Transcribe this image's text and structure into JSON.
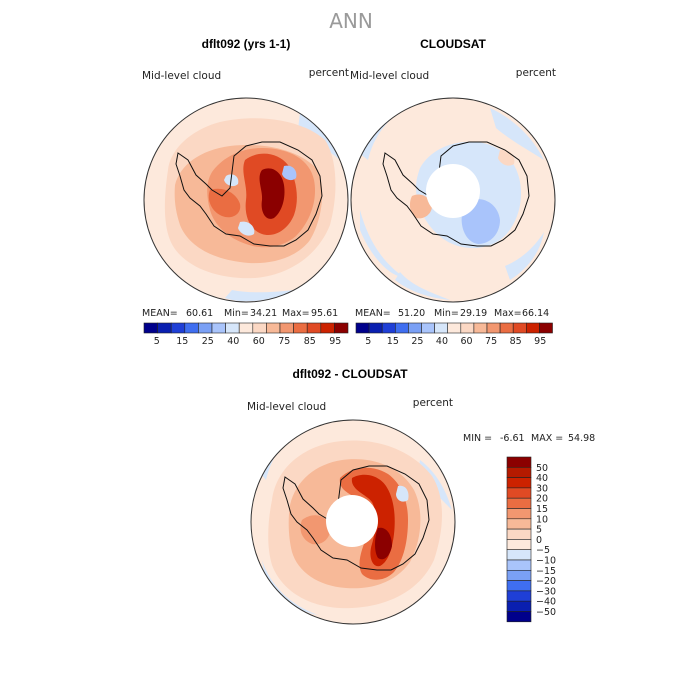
{
  "figure": {
    "title": "ANN"
  },
  "colors": {
    "deep_red": "#8b0000",
    "red": "#cc2200",
    "light_salmon": "#fbd8c4",
    "cream": "#fde9dc",
    "pale_blue": "#d6e6fa",
    "blue": "#1f3fd6",
    "navy": "#00008b"
  },
  "chart_data": [
    {
      "type": "heatmap",
      "projection": "south-polar-stereographic",
      "title": "dflt092 (yrs 1-1)",
      "variable_label": "Mid-level cloud",
      "units_label": "percent",
      "stats": {
        "mean_label": "MEAN=",
        "mean": "60.61",
        "min_label": "Min=",
        "min": "34.21",
        "max_label": "Max=",
        "max": "95.61"
      },
      "colorbar": {
        "orientation": "horizontal",
        "tick_labels": [
          "5",
          "15",
          "25",
          "40",
          "60",
          "75",
          "85",
          "95"
        ],
        "colors": [
          "#00008b",
          "#0a1fb0",
          "#1f3fd6",
          "#3f6ef0",
          "#7aa0f5",
          "#a9c4fb",
          "#d6e6fa",
          "#fde9dc",
          "#fbd8c4",
          "#f7b998",
          "#f29770",
          "#ea6d42",
          "#e04a24",
          "#cc2200",
          "#8b0000"
        ]
      }
    },
    {
      "type": "heatmap",
      "projection": "south-polar-stereographic",
      "title": "CLOUDSAT",
      "variable_label": "Mid-level cloud",
      "units_label": "percent",
      "stats": {
        "mean_label": "MEAN=",
        "mean": "51.20",
        "min_label": "Min=",
        "min": "29.19",
        "max_label": "Max=",
        "max": "66.14"
      },
      "colorbar": {
        "orientation": "horizontal",
        "tick_labels": [
          "5",
          "15",
          "25",
          "40",
          "60",
          "75",
          "85",
          "95"
        ],
        "colors": [
          "#00008b",
          "#0a1fb0",
          "#1f3fd6",
          "#3f6ef0",
          "#7aa0f5",
          "#a9c4fb",
          "#d6e6fa",
          "#fde9dc",
          "#fbd8c4",
          "#f7b998",
          "#f29770",
          "#ea6d42",
          "#e04a24",
          "#cc2200",
          "#8b0000"
        ]
      }
    },
    {
      "type": "heatmap",
      "projection": "south-polar-stereographic",
      "title": "dflt092 - CLOUDSAT",
      "variable_label": "Mid-level cloud",
      "units_label": "percent",
      "stats": {
        "min_label": "MIN =",
        "min": "-6.61",
        "max_label": "MAX =",
        "max": "54.98"
      },
      "colorbar": {
        "orientation": "vertical",
        "tick_labels": [
          "50",
          "40",
          "30",
          "20",
          "15",
          "10",
          "5",
          "0",
          "−5",
          "−10",
          "−15",
          "−20",
          "−30",
          "−40",
          "−50"
        ],
        "colors": [
          "#8b0000",
          "#b51a00",
          "#cc2200",
          "#e04a24",
          "#ea6d42",
          "#f29770",
          "#f7b998",
          "#fbd8c4",
          "#fde9dc",
          "#d6e6fa",
          "#a9c4fb",
          "#7aa0f5",
          "#3f6ef0",
          "#1f3fd6",
          "#0a1fb0",
          "#00008b"
        ]
      }
    }
  ]
}
